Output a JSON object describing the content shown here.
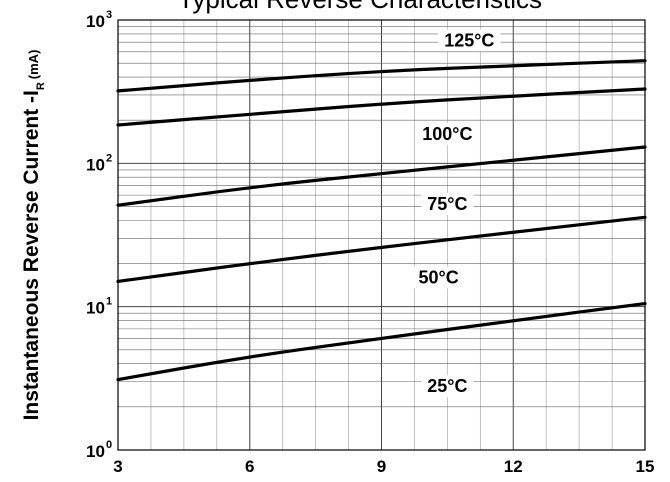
{
  "chart_data": {
    "type": "line",
    "title": "Typical Reverse Characteristics",
    "ylabel": "Instantaneous Reverse Current -I",
    "ylabel_sub": "R",
    "ylabel_unit": "(mA)",
    "xlabel": "",
    "x_scale": "linear",
    "y_scale": "log",
    "xlim": [
      3,
      15
    ],
    "ylim": [
      1,
      1000
    ],
    "x_ticks": [
      3,
      6,
      9,
      12,
      15
    ],
    "y_ticks": [
      {
        "base": "10",
        "exp": "0",
        "value": 1
      },
      {
        "base": "10",
        "exp": "1",
        "value": 10
      },
      {
        "base": "10",
        "exp": "2",
        "value": 100
      },
      {
        "base": "10",
        "exp": "3",
        "value": 1000
      }
    ],
    "grid": true,
    "series": [
      {
        "name": "125°C",
        "x": [
          3,
          6,
          9,
          12,
          15
        ],
        "values": [
          320,
          380,
          440,
          480,
          520
        ]
      },
      {
        "name": "100°C",
        "x": [
          3,
          6,
          9,
          12,
          15
        ],
        "values": [
          185,
          220,
          260,
          295,
          330
        ]
      },
      {
        "name": "75°C",
        "x": [
          3,
          6,
          9,
          12,
          15
        ],
        "values": [
          51,
          68,
          85,
          105,
          130
        ]
      },
      {
        "name": "50°C",
        "x": [
          3,
          6,
          9,
          12,
          15
        ],
        "values": [
          15,
          20,
          26,
          33,
          42
        ]
      },
      {
        "name": "25°C",
        "x": [
          3,
          6,
          9,
          12,
          15
        ],
        "values": [
          3.1,
          4.5,
          6.0,
          8.0,
          10.5
        ]
      }
    ],
    "label_positions": [
      {
        "name": "125°C",
        "x": 11.0,
        "y": 720
      },
      {
        "name": "100°C",
        "x": 10.5,
        "y": 160
      },
      {
        "name": "75°C",
        "x": 10.5,
        "y": 52
      },
      {
        "name": "50°C",
        "x": 10.3,
        "y": 16
      },
      {
        "name": "25°C",
        "x": 10.5,
        "y": 2.8
      }
    ]
  }
}
